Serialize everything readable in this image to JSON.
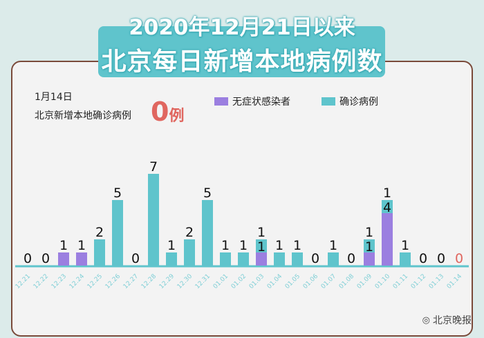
{
  "title_line1": "2020年12月21日以来",
  "title_line2": "北京每日新增本地病例数",
  "highlight": {
    "date": "1月14日",
    "label": "北京新增本地确诊病例",
    "value": "0",
    "unit": "例",
    "color": "#e0665f"
  },
  "watermark": "北京晚报",
  "colors": {
    "confirmed": "#5fc4cc",
    "asymptomatic": "#9b7fe0",
    "axis": "#5fc4cc",
    "panel_border": "#7a4a3a"
  },
  "chart_data": {
    "type": "bar",
    "stacked": true,
    "categories": [
      "12.21",
      "12.22",
      "12.23",
      "12.24",
      "12.25",
      "12.26",
      "12.27",
      "12.28",
      "12.29",
      "12.30",
      "12.31",
      "01.01",
      "01.02",
      "01.03",
      "01.04",
      "01.05",
      "01.06",
      "01.07",
      "01.08",
      "01.09",
      "01.10",
      "01.11",
      "01.12",
      "01.13",
      "01.14"
    ],
    "series": [
      {
        "name": "无症状感染者",
        "values": [
          0,
          0,
          1,
          1,
          0,
          0,
          0,
          0,
          0,
          0,
          0,
          0,
          0,
          1,
          0,
          0,
          0,
          0,
          0,
          1,
          4,
          0,
          0,
          0,
          0
        ]
      },
      {
        "name": "确诊病例",
        "values": [
          0,
          0,
          0,
          0,
          2,
          5,
          0,
          7,
          1,
          2,
          5,
          1,
          1,
          1,
          1,
          1,
          0,
          1,
          0,
          1,
          1,
          1,
          0,
          0,
          0
        ]
      }
    ],
    "legend": "top",
    "grid": false
  }
}
